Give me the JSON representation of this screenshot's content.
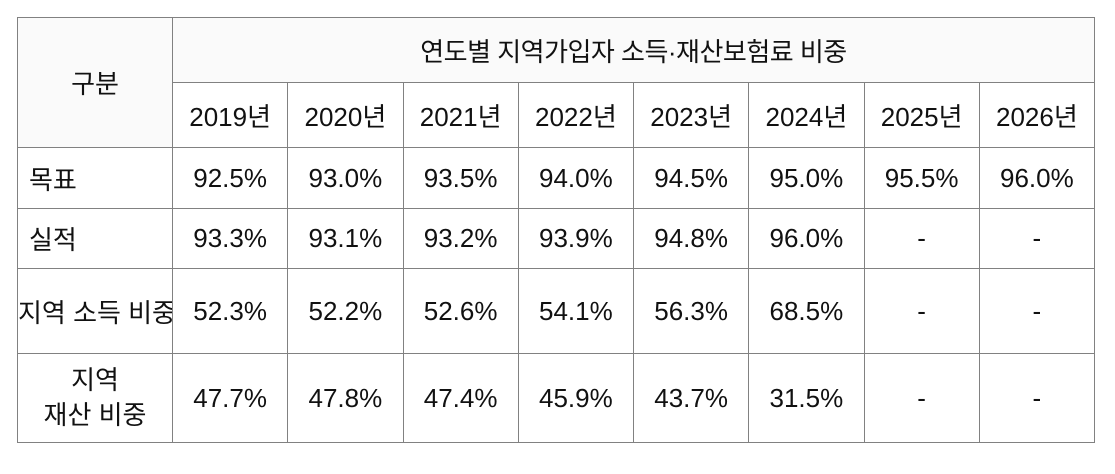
{
  "table": {
    "corner_header": "구분",
    "title": "연도별 지역가입자 소득·재산보험료 비중",
    "years": [
      "2019년",
      "2020년",
      "2021년",
      "2022년",
      "2023년",
      "2024년",
      "2025년",
      "2026년"
    ],
    "rows": [
      {
        "label": "목표",
        "values": [
          "92.5%",
          "93.0%",
          "93.5%",
          "94.0%",
          "94.5%",
          "95.0%",
          "95.5%",
          "96.0%"
        ]
      },
      {
        "label": "실적",
        "values": [
          "93.3%",
          "93.1%",
          "93.2%",
          "93.9%",
          "94.8%",
          "96.0%",
          "-",
          "-"
        ]
      },
      {
        "label": "지역 소득 비중",
        "values": [
          "52.3%",
          "52.2%",
          "52.6%",
          "54.1%",
          "56.3%",
          "68.5%",
          "-",
          "-"
        ]
      },
      {
        "label": "지역 재산 비중",
        "label_lines": [
          "지역",
          "재산 비중"
        ],
        "values": [
          "47.7%",
          "47.8%",
          "47.4%",
          "45.9%",
          "43.7%",
          "31.5%",
          "-",
          "-"
        ]
      }
    ],
    "colors": {
      "border": "#818181",
      "header_bg": "#fafafa",
      "text": "#111111"
    }
  }
}
